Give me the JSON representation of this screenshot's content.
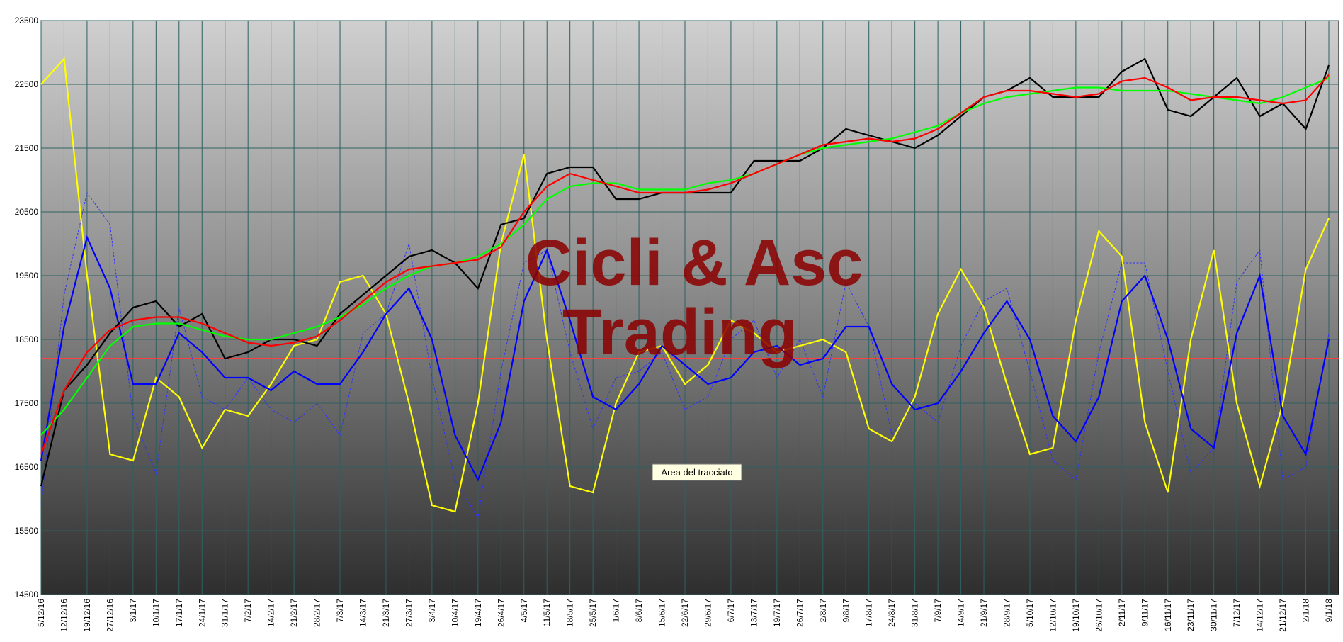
{
  "chart_data": {
    "type": "line",
    "watermark": [
      "Cicli & Asc",
      "Trading"
    ],
    "tooltip": "Area del tracciato",
    "categories": [
      "5/12/16",
      "12/12/16",
      "19/12/16",
      "27/12/16",
      "3/1/17",
      "10/1/17",
      "17/1/17",
      "24/1/17",
      "31/1/17",
      "7/2/17",
      "14/2/17",
      "21/2/17",
      "28/2/17",
      "7/3/17",
      "14/3/17",
      "21/3/17",
      "27/3/17",
      "3/4/17",
      "10/4/17",
      "19/4/17",
      "26/4/17",
      "4/5/17",
      "11/5/17",
      "18/5/17",
      "25/5/17",
      "1/6/17",
      "8/6/17",
      "15/6/17",
      "22/6/17",
      "29/6/17",
      "6/7/17",
      "13/7/17",
      "19/7/17",
      "26/7/17",
      "2/8/17",
      "9/8/17",
      "17/8/17",
      "24/8/17",
      "31/8/17",
      "7/9/17",
      "14/9/17",
      "21/9/17",
      "28/9/17",
      "5/10/17",
      "12/10/17",
      "19/10/17",
      "26/10/17",
      "2/11/17",
      "9/11/17",
      "16/11/17",
      "23/11/17",
      "30/11/17",
      "7/12/17",
      "14/12/17",
      "21/12/17",
      "2/1/18",
      "9/1/18"
    ],
    "ylim": [
      14500,
      23500
    ],
    "yticks": [
      14500,
      15500,
      16500,
      17500,
      18500,
      19500,
      20500,
      21500,
      22500,
      23500
    ],
    "grid": true,
    "reference_line": {
      "value": 18200,
      "color": "#ff4040"
    },
    "series": [
      {
        "color": "#3030ff",
        "dashed": true,
        "values": [
          15900,
          19200,
          20800,
          20300,
          17300,
          16400,
          19000,
          17600,
          17400,
          17900,
          17400,
          17200,
          17500,
          17000,
          18600,
          18900,
          20000,
          17900,
          16300,
          15700,
          18000,
          19700,
          19900,
          18300,
          17100,
          17900,
          18000,
          18300,
          17400,
          17600,
          18500,
          18800,
          17900,
          18500,
          17600,
          19400,
          18700,
          17000,
          17500,
          17200,
          18400,
          19100,
          19300,
          18000,
          16600,
          16300,
          18300,
          19700,
          19700,
          18000,
          16400,
          16800,
          19400,
          19900,
          16300,
          16500,
          18600
        ]
      },
      {
        "color": "#ffff00",
        "values": [
          22500,
          22900,
          19500,
          16700,
          16600,
          17900,
          17600,
          16800,
          17400,
          17300,
          17800,
          18400,
          18500,
          19400,
          19500,
          18900,
          17500,
          15900,
          15800,
          17500,
          20000,
          21400,
          18500,
          16200,
          16100,
          17500,
          18300,
          18400,
          17800,
          18100,
          18800,
          18600,
          18300,
          18400,
          18500,
          18300,
          17100,
          16900,
          17600,
          18900,
          19600,
          19000,
          17800,
          16700,
          16800,
          18800,
          20200,
          19800,
          17200,
          16100,
          18500,
          19900,
          17500,
          16200,
          17500,
          19600,
          20400
        ]
      },
      {
        "color": "#0000ff",
        "values": [
          16600,
          18700,
          20100,
          19300,
          17800,
          17800,
          18600,
          18300,
          17900,
          17900,
          17700,
          18000,
          17800,
          17800,
          18300,
          18900,
          19300,
          18500,
          17000,
          16300,
          17200,
          19100,
          19900,
          18800,
          17600,
          17400,
          17800,
          18400,
          18100,
          17800,
          17900,
          18300,
          18400,
          18100,
          18200,
          18700,
          18700,
          17800,
          17400,
          17500,
          18000,
          18600,
          19100,
          18500,
          17300,
          16900,
          17600,
          19100,
          19500,
          18500,
          17100,
          16800,
          18600,
          19500,
          17300,
          16700,
          18500
        ]
      },
      {
        "color": "#000000",
        "values": [
          16200,
          17700,
          18100,
          18600,
          19000,
          19100,
          18700,
          18900,
          18200,
          18300,
          18500,
          18500,
          18400,
          18900,
          19200,
          19500,
          19800,
          19900,
          19700,
          19300,
          20300,
          20400,
          21100,
          21200,
          21200,
          20700,
          20700,
          20800,
          20800,
          20800,
          20800,
          21300,
          21300,
          21300,
          21500,
          21800,
          21700,
          21600,
          21500,
          21700,
          22000,
          22300,
          22400,
          22600,
          22300,
          22300,
          22300,
          22700,
          22900,
          22100,
          22000,
          22300,
          22600,
          22000,
          22200,
          21800,
          22800
        ]
      },
      {
        "color": "#00ff00",
        "values": [
          17000,
          17400,
          17900,
          18400,
          18700,
          18750,
          18750,
          18650,
          18550,
          18500,
          18500,
          18600,
          18700,
          18850,
          19050,
          19300,
          19500,
          19650,
          19700,
          19800,
          20000,
          20300,
          20700,
          20900,
          20950,
          20950,
          20850,
          20850,
          20850,
          20950,
          21000,
          21100,
          21250,
          21400,
          21500,
          21550,
          21600,
          21650,
          21750,
          21850,
          22050,
          22200,
          22300,
          22350,
          22400,
          22450,
          22450,
          22400,
          22400,
          22400,
          22350,
          22300,
          22250,
          22200,
          22300,
          22450,
          22600
        ]
      },
      {
        "color": "#ff0000",
        "values": [
          16700,
          17700,
          18300,
          18650,
          18800,
          18850,
          18850,
          18750,
          18600,
          18450,
          18400,
          18450,
          18550,
          18800,
          19100,
          19400,
          19600,
          19650,
          19700,
          19750,
          19950,
          20500,
          20900,
          21100,
          21000,
          20900,
          20800,
          20800,
          20800,
          20850,
          20950,
          21100,
          21250,
          21400,
          21550,
          21600,
          21650,
          21600,
          21650,
          21800,
          22050,
          22300,
          22400,
          22400,
          22350,
          22300,
          22350,
          22550,
          22600,
          22450,
          22250,
          22300,
          22300,
          22250,
          22200,
          22250,
          22650
        ]
      }
    ]
  }
}
